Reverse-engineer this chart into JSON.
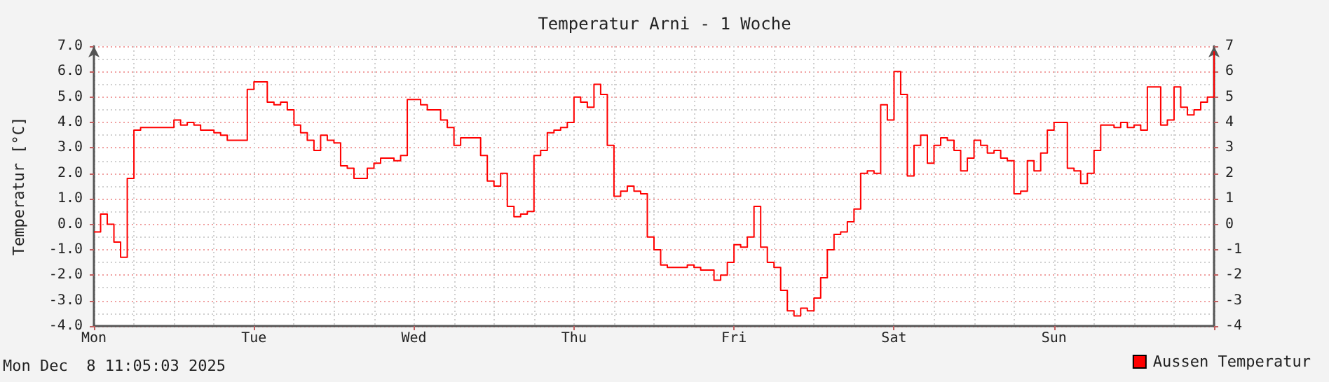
{
  "chart_data": {
    "type": "step",
    "title": "Temperatur Arni - 1 Woche",
    "ylabel": "Temperatur [°C]",
    "annotations": [
      "Mon Dec  8 11:05:03 2025"
    ],
    "categories": [
      "Mon",
      null,
      null,
      null,
      null,
      null,
      null,
      null,
      null,
      null,
      null,
      null,
      null,
      null,
      null,
      null,
      null,
      null,
      null,
      null,
      null,
      null,
      null,
      null,
      "Tue",
      null,
      null,
      null,
      null,
      null,
      null,
      null,
      null,
      null,
      null,
      null,
      null,
      null,
      null,
      null,
      null,
      null,
      null,
      null,
      null,
      null,
      null,
      null,
      "Wed",
      null,
      null,
      null,
      null,
      null,
      null,
      null,
      null,
      null,
      null,
      null,
      null,
      null,
      null,
      null,
      null,
      null,
      null,
      null,
      null,
      null,
      null,
      null,
      "Thu",
      null,
      null,
      null,
      null,
      null,
      null,
      null,
      null,
      null,
      null,
      null,
      null,
      null,
      null,
      null,
      null,
      null,
      null,
      null,
      null,
      null,
      null,
      null,
      "Fri",
      null,
      null,
      null,
      null,
      null,
      null,
      null,
      null,
      null,
      null,
      null,
      null,
      null,
      null,
      null,
      null,
      null,
      null,
      null,
      null,
      null,
      null,
      null,
      "Sat",
      null,
      null,
      null,
      null,
      null,
      null,
      null,
      null,
      null,
      null,
      null,
      null,
      null,
      null,
      null,
      null,
      null,
      null,
      null,
      null,
      null,
      null,
      null,
      "Sun",
      null,
      null,
      null,
      null,
      null,
      null,
      null,
      null,
      null,
      null,
      null,
      null,
      null,
      null,
      null,
      null,
      null,
      null,
      null,
      null,
      null,
      null,
      null,
      null
    ],
    "ylim": [
      -4,
      7
    ],
    "yticks": [
      {
        "value": -4,
        "label": "-4.0"
      },
      {
        "value": -3,
        "label": "-3.0"
      },
      {
        "value": -2,
        "label": "-2.0"
      },
      {
        "value": -1,
        "label": "-1.0"
      },
      {
        "value": 0,
        "label": "0.0"
      },
      {
        "value": 1,
        "label": "1.0"
      },
      {
        "value": 2,
        "label": "2.0"
      },
      {
        "value": 3,
        "label": "3.0"
      },
      {
        "value": 4,
        "label": "4.0"
      },
      {
        "value": 5,
        "label": "5.0"
      },
      {
        "value": 6,
        "label": "6.0"
      },
      {
        "value": 7,
        "label": "7.0"
      }
    ],
    "y2lim": [
      -4,
      7
    ],
    "y2ticks": [
      -4,
      -3,
      -2,
      -1,
      0,
      1,
      2,
      3,
      4,
      5,
      6,
      7
    ],
    "grid": true,
    "legend": "bottom right",
    "marker": "none",
    "line_style": "solid",
    "series": [
      {
        "name": "Aussen Temperatur",
        "color": "#ff0000",
        "values": [
          -0.3,
          0.4,
          0,
          -0.7,
          -1.3,
          1.8,
          3.7,
          3.8,
          3.8,
          3.8,
          3.8,
          3.8,
          4.1,
          3.9,
          4,
          3.9,
          3.7,
          3.7,
          3.6,
          3.5,
          3.3,
          3.3,
          3.3,
          5.3,
          5.6,
          5.6,
          4.8,
          4.7,
          4.8,
          4.5,
          3.9,
          3.6,
          3.3,
          2.9,
          3.5,
          3.3,
          3.2,
          2.3,
          2.2,
          1.8,
          1.8,
          2.2,
          2.4,
          2.6,
          2.6,
          2.5,
          2.7,
          4.9,
          4.9,
          4.7,
          4.5,
          4.5,
          4.1,
          3.8,
          3.1,
          3.4,
          3.4,
          3.4,
          2.7,
          1.7,
          1.5,
          2,
          0.7,
          0.3,
          0.4,
          0.5,
          2.7,
          2.9,
          3.6,
          3.7,
          3.8,
          4,
          5,
          4.8,
          4.6,
          5.5,
          5.1,
          3.1,
          1.1,
          1.3,
          1.5,
          1.3,
          1.2,
          -0.5,
          -1,
          -1.6,
          -1.7,
          -1.7,
          -1.7,
          -1.6,
          -1.7,
          -1.8,
          -1.8,
          -2.2,
          -2,
          -1.5,
          -0.8,
          -0.9,
          -0.5,
          0.7,
          -0.9,
          -1.5,
          -1.7,
          -2.6,
          -3.4,
          -3.6,
          -3.3,
          -3.4,
          -2.9,
          -2.1,
          -1,
          -0.4,
          -0.3,
          0.1,
          0.6,
          2,
          2.1,
          2,
          4.7,
          4.1,
          6,
          5.1,
          1.9,
          3.1,
          3.5,
          2.4,
          3.1,
          3.4,
          3.3,
          2.9,
          2.1,
          2.6,
          3.3,
          3.1,
          2.8,
          2.9,
          2.6,
          2.5,
          1.2,
          1.3,
          2.5,
          2.1,
          2.8,
          3.7,
          4,
          4,
          2.2,
          2.1,
          1.6,
          2,
          2.9,
          3.9,
          3.9,
          3.8,
          4,
          3.8,
          3.9,
          3.7,
          5.4,
          5.4,
          3.9,
          4.1,
          5.4,
          4.6,
          4.3,
          4.5,
          4.8,
          5,
          6.8
        ]
      }
    ]
  }
}
